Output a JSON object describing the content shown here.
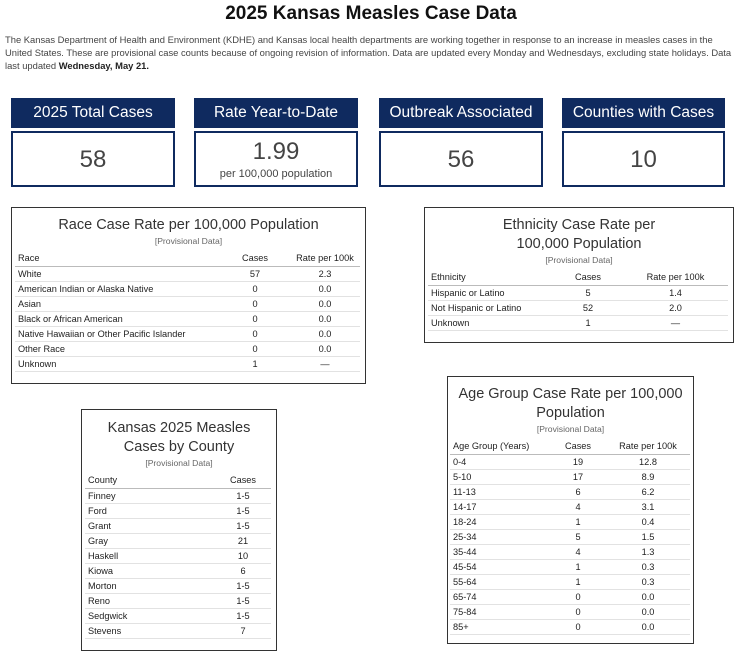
{
  "header": {
    "title": "2025 Kansas Measles Case Data",
    "intro": "The Kansas Department of Health and Environment (KDHE) and Kansas local health departments are working together in response to an increase in measles cases in the United States. These are provisional case counts because of ongoing revision of information. Data are updated every Monday and Wednesdays, excluding state holidays. Data last updated ",
    "updated": "Wednesday, May 21."
  },
  "kpis": {
    "total": {
      "label": "2025 Total Cases",
      "value": "58"
    },
    "rate": {
      "label": "Rate Year-to-Date",
      "value": "1.99",
      "sub": "per 100,000 population"
    },
    "outbreak": {
      "label": "Outbreak Associated",
      "value": "56"
    },
    "counties": {
      "label": "Counties with Cases",
      "value": "10"
    }
  },
  "race": {
    "title": "Race Case Rate per 100,000 Population",
    "subtitle": "[Provisional Data]",
    "columns": [
      "Race",
      "Cases",
      "Rate per 100k"
    ],
    "rows": [
      [
        "White",
        "57",
        "2.3"
      ],
      [
        "American Indian or Alaska Native",
        "0",
        "0.0"
      ],
      [
        "Asian",
        "0",
        "0.0"
      ],
      [
        "Black or African American",
        "0",
        "0.0"
      ],
      [
        "Native Hawaiian or Other Pacific Islander",
        "0",
        "0.0"
      ],
      [
        "Other Race",
        "0",
        "0.0"
      ],
      [
        "Unknown",
        "1",
        "—"
      ]
    ]
  },
  "ethnicity": {
    "title_line1": "Ethnicity Case Rate per",
    "title_line2": "100,000 Population",
    "subtitle": "[Provisional Data]",
    "columns": [
      "Ethnicity",
      "Cases",
      "Rate per 100k"
    ],
    "rows": [
      [
        "Hispanic or Latino",
        "5",
        "1.4"
      ],
      [
        "Not Hispanic or Latino",
        "52",
        "2.0"
      ],
      [
        "Unknown",
        "1",
        "—"
      ]
    ]
  },
  "county": {
    "title_line1": "Kansas 2025 Measles",
    "title_line2": "Cases by County",
    "subtitle": "[Provisional Data]",
    "columns": [
      "County",
      "Cases"
    ],
    "rows": [
      [
        "Finney",
        "1-5"
      ],
      [
        "Ford",
        "1-5"
      ],
      [
        "Grant",
        "1-5"
      ],
      [
        "Gray",
        "21"
      ],
      [
        "Haskell",
        "10"
      ],
      [
        "Kiowa",
        "6"
      ],
      [
        "Morton",
        "1-5"
      ],
      [
        "Reno",
        "1-5"
      ],
      [
        "Sedgwick",
        "1-5"
      ],
      [
        "Stevens",
        "7"
      ]
    ]
  },
  "age": {
    "title_line1": "Age Group Case Rate per 100,000",
    "title_line2": "Population",
    "subtitle": "[Provisional Data]",
    "columns": [
      "Age Group (Years)",
      "Cases",
      "Rate per 100k"
    ],
    "rows": [
      [
        "0-4",
        "19",
        "12.8"
      ],
      [
        "5-10",
        "17",
        "8.9"
      ],
      [
        "11-13",
        "6",
        "6.2"
      ],
      [
        "14-17",
        "4",
        "3.1"
      ],
      [
        "18-24",
        "1",
        "0.4"
      ],
      [
        "25-34",
        "5",
        "1.5"
      ],
      [
        "35-44",
        "4",
        "1.3"
      ],
      [
        "45-54",
        "1",
        "0.3"
      ],
      [
        "55-64",
        "1",
        "0.3"
      ],
      [
        "65-74",
        "0",
        "0.0"
      ],
      [
        "75-84",
        "0",
        "0.0"
      ],
      [
        "85+",
        "0",
        "0.0"
      ]
    ]
  }
}
